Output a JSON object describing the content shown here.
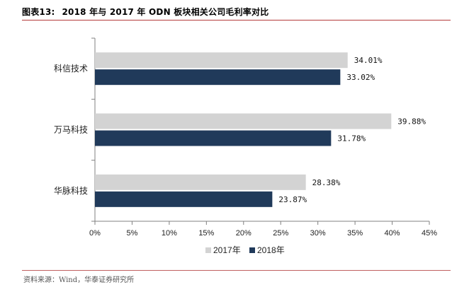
{
  "figure": {
    "number": "图表13:",
    "title": "2018 年与 2017 年 ODN 板块相关公司毛利率对比",
    "source": "资料来源：Wind，华泰证券研究所"
  },
  "colors": {
    "s2017": "#d3d3d3",
    "s2018": "#203a5a",
    "axis": "#808080"
  },
  "chart_data": {
    "type": "bar",
    "orientation": "horizontal",
    "categories": [
      "科信技术",
      "万马科技",
      "华脉科技"
    ],
    "series": [
      {
        "name": "2017年",
        "values": [
          34.01,
          39.88,
          28.38
        ],
        "labels": [
          "34.01%",
          "39.88%",
          "28.38%"
        ]
      },
      {
        "name": "2018年",
        "values": [
          33.02,
          31.78,
          23.87
        ],
        "labels": [
          "33.02%",
          "31.78%",
          "23.87%"
        ]
      }
    ],
    "xlim": [
      0,
      45
    ],
    "xticks": [
      "0%",
      "5%",
      "10%",
      "15%",
      "20%",
      "25%",
      "30%",
      "35%",
      "40%",
      "45%"
    ],
    "legend": "bottom",
    "grid": false
  }
}
